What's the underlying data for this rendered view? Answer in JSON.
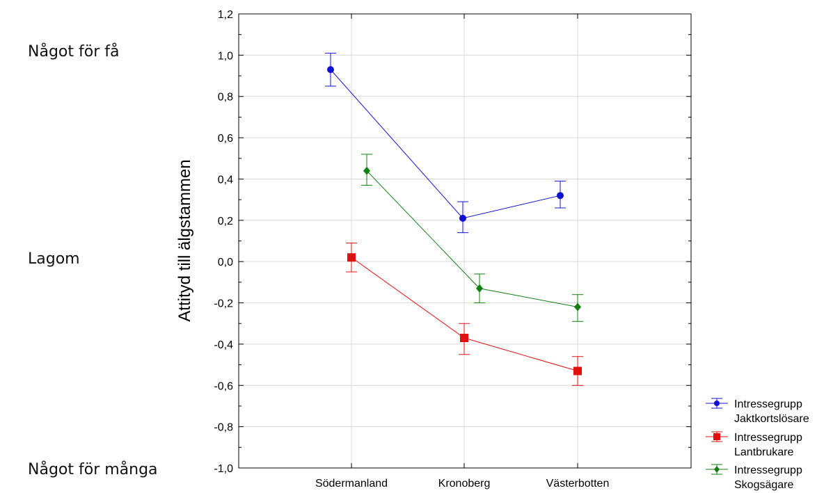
{
  "annotations": {
    "top": "Något för få",
    "middle": "Lagom",
    "bottom": "Något för många"
  },
  "chart_data": {
    "type": "line",
    "ylabel": "Attityd till älgstammen",
    "xlabel": "",
    "categories": [
      "Södermanland",
      "Kronoberg",
      "Västerbotten"
    ],
    "ylim": [
      -1.0,
      1.2
    ],
    "yticks": [
      -1.0,
      -0.8,
      -0.6,
      -0.4,
      -0.2,
      0.0,
      0.2,
      0.4,
      0.6,
      0.8,
      1.0,
      1.2
    ],
    "ytick_labels": [
      "-1,0",
      "-0,8",
      "-0,6",
      "-0,4",
      "-0,2",
      "0,0",
      "0,2",
      "0,4",
      "0,6",
      "0,8",
      "1,0",
      "1,2"
    ],
    "grid": true,
    "legend_position": "bottom-right",
    "error_bars": true,
    "series": [
      {
        "name_line1": "Intressegrupp",
        "name_line2": "Jaktkortslösare",
        "color": "#1010d0",
        "marker": "circle",
        "values": [
          0.93,
          0.21,
          0.32
        ],
        "lower": [
          0.85,
          0.14,
          0.26
        ],
        "upper": [
          1.01,
          0.29,
          0.39
        ]
      },
      {
        "name_line1": "Intressegrupp",
        "name_line2": "Lantbrukare",
        "color": "#e01010",
        "marker": "square",
        "values": [
          0.02,
          -0.37,
          -0.53
        ],
        "lower": [
          -0.05,
          -0.45,
          -0.6
        ],
        "upper": [
          0.09,
          -0.3,
          -0.46
        ]
      },
      {
        "name_line1": "Intressegrupp",
        "name_line2": "Skogsägare",
        "color": "#108010",
        "marker": "diamond",
        "values": [
          0.44,
          -0.13,
          -0.22
        ],
        "lower": [
          0.37,
          -0.2,
          -0.29
        ],
        "upper": [
          0.52,
          -0.06,
          -0.16
        ]
      }
    ]
  }
}
